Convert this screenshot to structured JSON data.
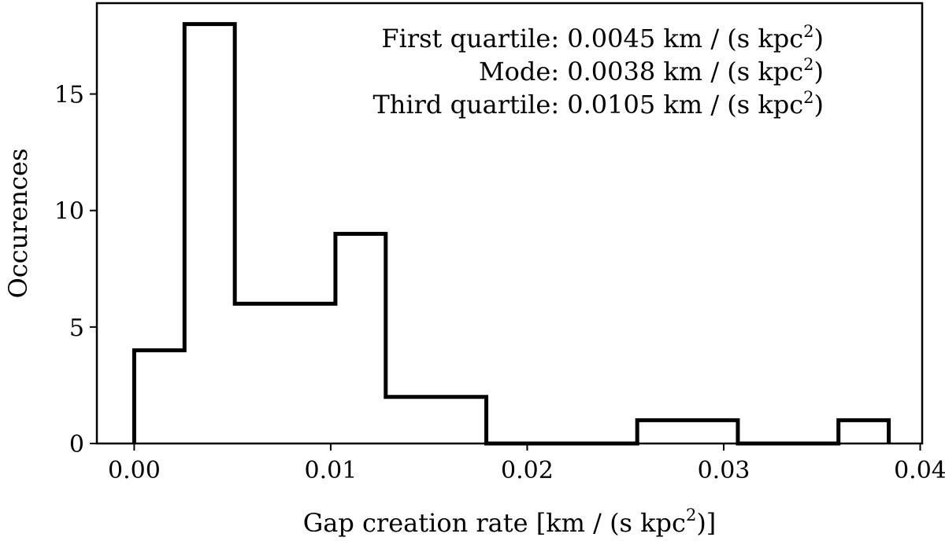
{
  "chart_data": {
    "type": "histogram",
    "xlabel": "Gap creation rate [km / (s kpc",
    "xlabel_sup": "2",
    "xlabel_tail": ")]",
    "ylabel": "Occurences",
    "xlim": [
      -0.0019,
      0.0401
    ],
    "ylim": [
      0,
      18.9
    ],
    "xticks": [
      {
        "value": 0.0,
        "label": "0.00"
      },
      {
        "value": 0.01,
        "label": "0.01"
      },
      {
        "value": 0.02,
        "label": "0.02"
      },
      {
        "value": 0.03,
        "label": "0.03"
      },
      {
        "value": 0.04,
        "label": "0.04"
      }
    ],
    "yticks": [
      {
        "value": 0,
        "label": "0"
      },
      {
        "value": 5,
        "label": "5"
      },
      {
        "value": 10,
        "label": "10"
      },
      {
        "value": 15,
        "label": "15"
      }
    ],
    "bin_edges": [
      0.0,
      0.00256,
      0.00512,
      0.00768,
      0.01024,
      0.0128,
      0.01536,
      0.01792,
      0.02048,
      0.02304,
      0.0256,
      0.02816,
      0.03072,
      0.03328,
      0.03584,
      0.0384
    ],
    "counts": [
      4,
      18,
      6,
      6,
      9,
      2,
      2,
      0,
      0,
      0,
      1,
      1,
      0,
      0,
      1
    ],
    "histtype": "step",
    "color": "#000000",
    "annotations": [
      {
        "prefix": "First quartile: 0.0045 km / (s kpc",
        "sup": "2",
        "suffix": ")"
      },
      {
        "prefix": "Mode: 0.0038 km / (s kpc",
        "sup": "2",
        "suffix": ")"
      },
      {
        "prefix": "Third quartile: 0.0105 km / (s kpc",
        "sup": "2",
        "suffix": ")"
      }
    ]
  }
}
